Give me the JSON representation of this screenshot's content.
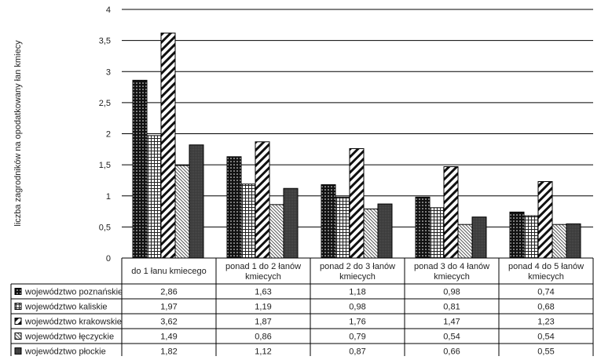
{
  "chart_data": {
    "type": "bar",
    "ylabel": "liczba zagrodników na opodatkowany łan kmiecy",
    "ylim": [
      0,
      4
    ],
    "yticks": [
      "0",
      "0,5",
      "1",
      "1,5",
      "2",
      "2,5",
      "3",
      "3,5",
      "4"
    ],
    "grid": true,
    "legend": "table-below",
    "categories": [
      [
        "do 1 łanu kmiecego"
      ],
      [
        "ponad 1 do 2 łanów",
        "kmiecych"
      ],
      [
        "ponad 2 do 3 łanów",
        "kmiecych"
      ],
      [
        "ponad 3 do 4 łanów",
        "kmiecych"
      ],
      [
        "ponad 4 do 5 łanów",
        "kmiecych"
      ]
    ],
    "series": [
      {
        "name": "województwo poznańskie",
        "pattern": "dots",
        "values": [
          2.86,
          1.63,
          1.18,
          0.98,
          0.74
        ],
        "labels": [
          "2,86",
          "1,63",
          "1,18",
          "0,98",
          "0,74"
        ]
      },
      {
        "name": "województwo kaliskie",
        "pattern": "grid",
        "values": [
          1.97,
          1.19,
          0.98,
          0.81,
          0.68
        ],
        "labels": [
          "1,97",
          "1,19",
          "0,98",
          "0,81",
          "0,68"
        ]
      },
      {
        "name": "województwo krakowskie",
        "pattern": "wide-diagonal",
        "values": [
          3.62,
          1.87,
          1.76,
          1.47,
          1.23
        ],
        "labels": [
          "3,62",
          "1,87",
          "1,76",
          "1,47",
          "1,23"
        ]
      },
      {
        "name": "województwo łęczyckie",
        "pattern": "light-diagonal",
        "values": [
          1.49,
          0.86,
          0.79,
          0.54,
          0.54
        ],
        "labels": [
          "1,49",
          "0,86",
          "0,79",
          "0,54",
          "0,54"
        ]
      },
      {
        "name": "województwo płockie",
        "pattern": "dark-dense",
        "values": [
          1.82,
          1.12,
          0.87,
          0.66,
          0.55
        ],
        "labels": [
          "1,82",
          "1,12",
          "0,87",
          "0,66",
          "0,55"
        ]
      }
    ]
  }
}
